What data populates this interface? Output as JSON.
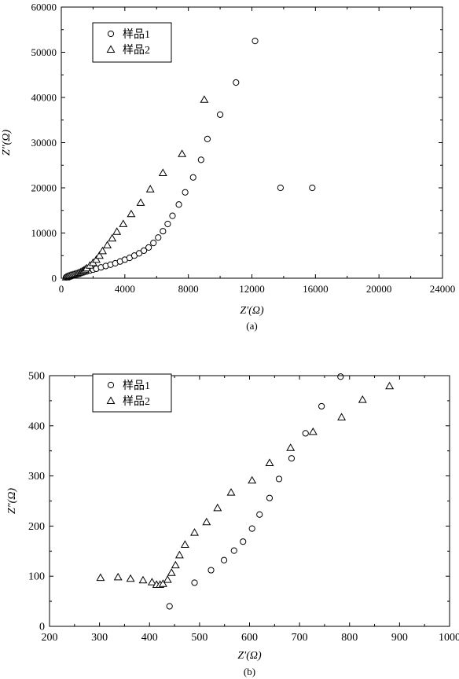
{
  "chart_data": [
    {
      "type": "scatter",
      "panel_label": "(a)",
      "xlabel": "Z′(Ω)",
      "ylabel": "Z″(Ω)",
      "xlim": [
        0,
        24000
      ],
      "ylim": [
        0,
        60000
      ],
      "xticks": [
        0,
        4000,
        8000,
        12000,
        16000,
        20000,
        24000
      ],
      "yticks": [
        0,
        10000,
        20000,
        30000,
        40000,
        50000,
        60000
      ],
      "grid": false,
      "legend_position": "top-left",
      "series": [
        {
          "name": "样品1",
          "marker": "circle",
          "x": [
            300,
            400,
            500,
            600,
            700,
            800,
            900,
            1000,
            1100,
            1200,
            1400,
            1600,
            1800,
            2000,
            2200,
            2500,
            2800,
            3100,
            3400,
            3700,
            4000,
            4300,
            4600,
            4900,
            5200,
            5500,
            5800,
            6100,
            6400,
            6700,
            7000,
            7400,
            7800,
            8300,
            8800,
            9200,
            10000,
            11000,
            12200,
            13800,
            15800
          ],
          "y": [
            200,
            350,
            450,
            550,
            650,
            750,
            850,
            950,
            1050,
            1150,
            1300,
            1500,
            1700,
            1900,
            2100,
            2400,
            2700,
            3000,
            3300,
            3700,
            4100,
            4500,
            5000,
            5500,
            6100,
            6800,
            7800,
            9000,
            10400,
            12000,
            13800,
            16300,
            19000,
            22300,
            26200,
            30800,
            36200,
            43300,
            52500,
            20000,
            20000
          ]
        },
        {
          "name": "样品2",
          "marker": "triangle",
          "x": [
            300,
            400,
            500,
            600,
            700,
            800,
            900,
            1000,
            1100,
            1200,
            1300,
            1400,
            1500,
            1600,
            1800,
            2000,
            2200,
            2400,
            2600,
            2900,
            3200,
            3500,
            3900,
            4400,
            5000,
            5600,
            6400,
            7600,
            9000
          ],
          "y": [
            200,
            350,
            500,
            600,
            700,
            800,
            900,
            1000,
            1150,
            1300,
            1500,
            1700,
            1950,
            2200,
            2800,
            3400,
            4100,
            5000,
            6000,
            7300,
            8800,
            10300,
            12000,
            14200,
            16700,
            19700,
            23300,
            27500,
            39500
          ]
        }
      ]
    },
    {
      "type": "scatter",
      "panel_label": "(b)",
      "xlabel": "Z′(Ω)",
      "ylabel": "Z″(Ω)",
      "xlim": [
        200,
        1000
      ],
      "ylim": [
        0,
        500
      ],
      "xticks": [
        200,
        300,
        400,
        500,
        600,
        700,
        800,
        900,
        1000
      ],
      "yticks": [
        0,
        100,
        200,
        300,
        400,
        500
      ],
      "grid": false,
      "legend_position": "top-left",
      "series": [
        {
          "name": "样品1",
          "marker": "circle",
          "x": [
            440,
            490,
            523,
            549,
            569,
            587,
            605,
            620,
            640,
            659,
            684,
            712,
            744,
            782
          ],
          "y": [
            40,
            87,
            112,
            132,
            151,
            169,
            195,
            223,
            256,
            294,
            335,
            385,
            439,
            498
          ]
        },
        {
          "name": "样品2",
          "marker": "triangle",
          "x": [
            302,
            337,
            362,
            387,
            405,
            414,
            421,
            427,
            436,
            444,
            452,
            460,
            471,
            490,
            514,
            536,
            563,
            605,
            640,
            682,
            727,
            784,
            826,
            880
          ],
          "y": [
            97,
            98,
            95,
            92,
            88,
            83,
            83,
            85,
            93,
            107,
            122,
            142,
            163,
            187,
            208,
            236,
            267,
            291,
            326,
            356,
            388,
            417,
            452,
            479
          ]
        }
      ]
    }
  ]
}
